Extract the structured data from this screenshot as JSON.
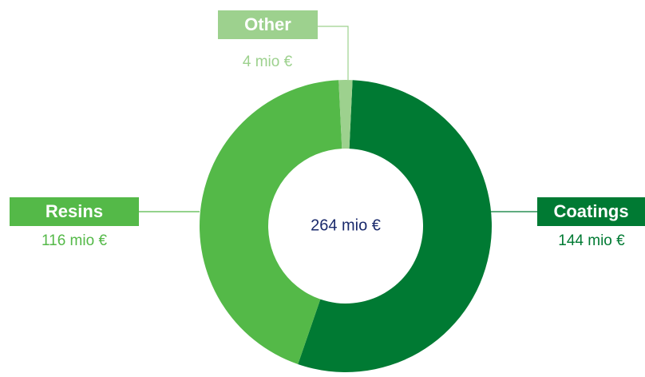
{
  "chart_data": {
    "type": "donut",
    "categories": [
      "Coatings",
      "Resins",
      "Other"
    ],
    "values": [
      144,
      116,
      4
    ],
    "value_labels": [
      "144 mio €",
      "116 mio €",
      "4 mio €"
    ],
    "colors": [
      "#007a33",
      "#54b948",
      "#9dd18e"
    ],
    "center_label": "264 mio €"
  }
}
